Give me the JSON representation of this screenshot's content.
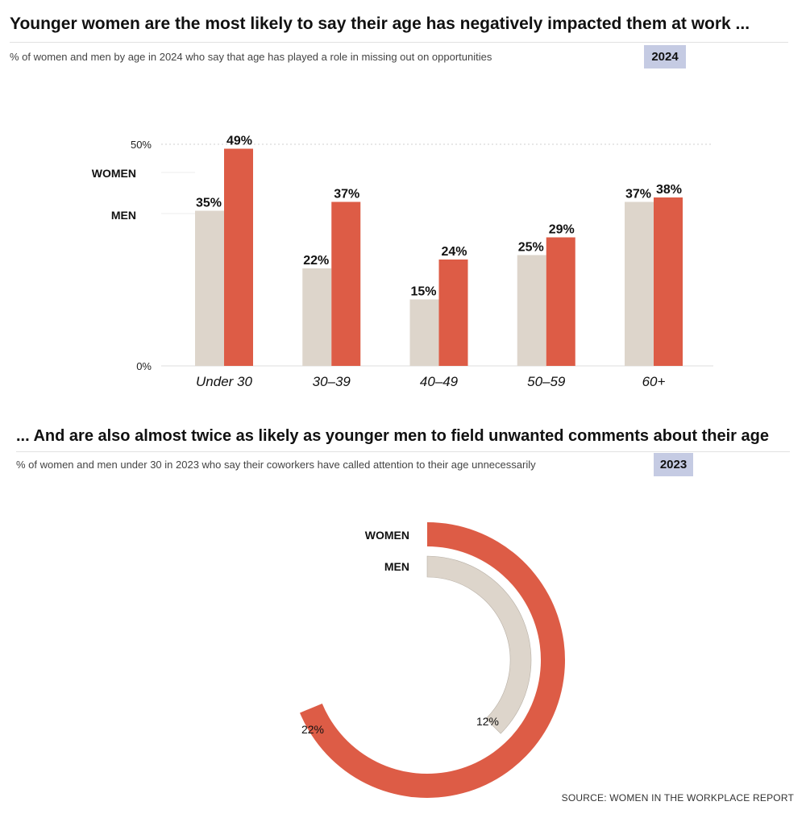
{
  "top": {
    "title": "Younger women are the most likely to say their age has negatively impacted them at work ...",
    "subtitle": "% of women and men by age in 2024 who say that age has played a role in missing out on opportunities",
    "year": "2024"
  },
  "bottom": {
    "title": "... And are also almost twice as likely as younger men to field unwanted comments about their age",
    "subtitle": "% of women and men under 30 in 2023 who say their coworkers have called attention to their age unnecessarily",
    "year": "2023"
  },
  "source": "SOURCE: WOMEN IN THE WORKPLACE REPORT",
  "colors": {
    "women": "#dd5c46",
    "men": "#ddd5cb"
  },
  "chart_data": [
    {
      "type": "bar",
      "categories": [
        "Under 30",
        "30–39",
        "40–49",
        "50–59",
        "60+"
      ],
      "series": [
        {
          "name": "MEN",
          "values": [
            35,
            22,
            15,
            25,
            37
          ],
          "labels": [
            "35%",
            "22%",
            "15%",
            "25%",
            "37%"
          ]
        },
        {
          "name": "WOMEN",
          "values": [
            49,
            37,
            24,
            29,
            38
          ],
          "labels": [
            "49%",
            "37%",
            "24%",
            "29%",
            "38%"
          ]
        }
      ],
      "yticks": [
        "0%",
        "50%"
      ],
      "ylim": [
        0,
        50
      ],
      "legend": [
        "WOMEN",
        "MEN"
      ],
      "legend_position": "left"
    },
    {
      "type": "radial-bar",
      "series": [
        {
          "name": "WOMEN",
          "value": 22,
          "label": "22%"
        },
        {
          "name": "MEN",
          "value": 12,
          "label": "12%"
        }
      ]
    }
  ]
}
